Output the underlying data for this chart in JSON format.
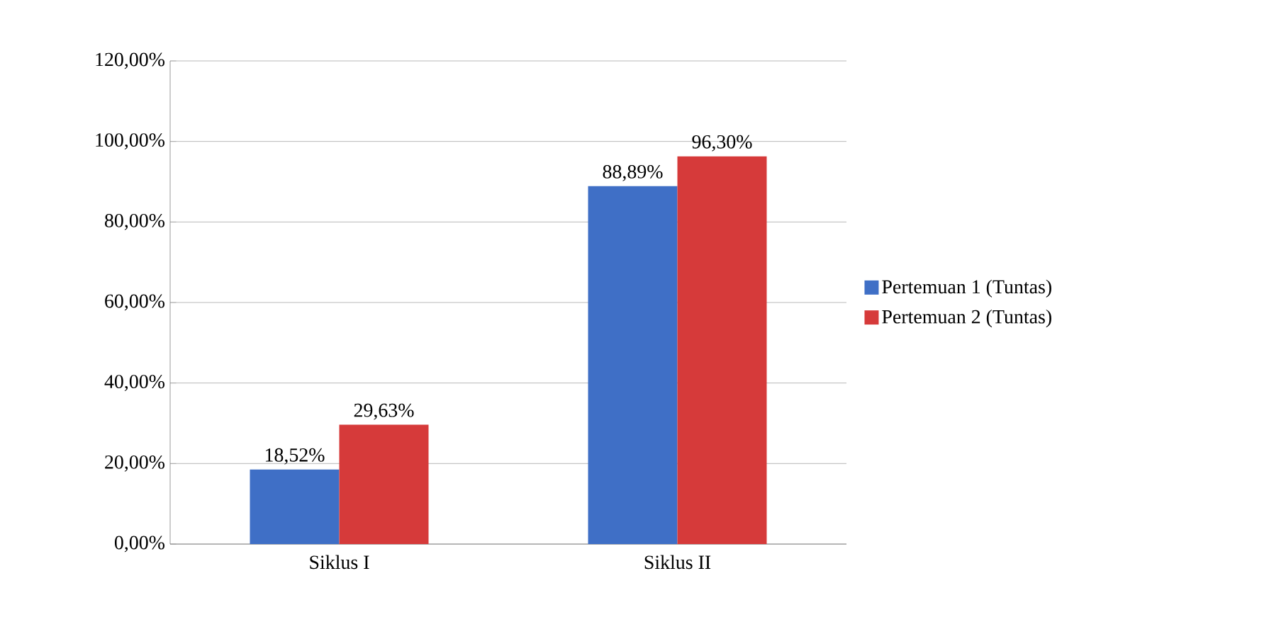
{
  "chart_data": {
    "type": "bar",
    "categories": [
      "Siklus I",
      "Siklus II"
    ],
    "series": [
      {
        "name": "Pertemuan 1 (Tuntas)",
        "color": "#3f6fc6",
        "values": [
          18.52,
          88.89
        ],
        "value_labels": [
          "18,52%",
          "88,89%"
        ]
      },
      {
        "name": "Pertemuan 2 (Tuntas)",
        "color": "#d63a3a",
        "values": [
          29.63,
          96.3
        ],
        "value_labels": [
          "29,63%",
          "96,30%"
        ]
      }
    ],
    "ylim": [
      0,
      120
    ],
    "yticks": [
      {
        "value": 0,
        "label": "0,00%"
      },
      {
        "value": 20,
        "label": "20,00%"
      },
      {
        "value": 40,
        "label": "40,00%"
      },
      {
        "value": 60,
        "label": "60,00%"
      },
      {
        "value": 80,
        "label": "80,00%"
      },
      {
        "value": 100,
        "label": "100,00%"
      },
      {
        "value": 120,
        "label": "120,00%"
      }
    ],
    "grid": "y",
    "legend": "right"
  }
}
